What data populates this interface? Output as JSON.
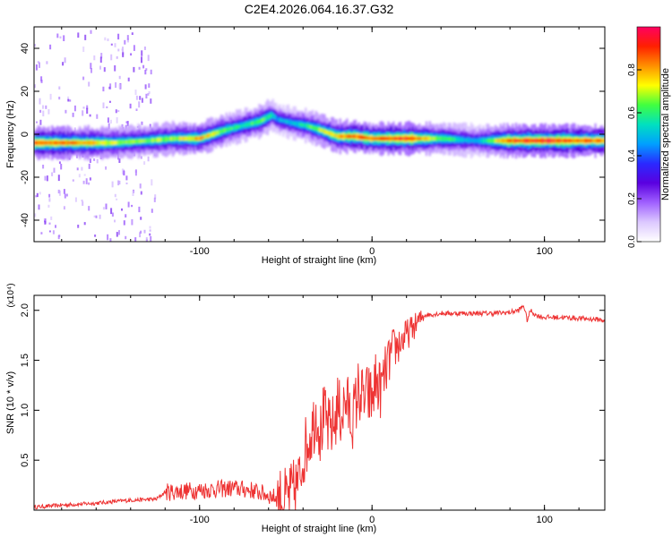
{
  "title": "C2E4.2026.064.16.37.G32",
  "colors": {
    "line": "#ee3333",
    "axis": "#000000",
    "colormap": [
      "#ffffff",
      "#dcc8ff",
      "#a060ff",
      "#5a00e0",
      "#2a2aff",
      "#00a0ff",
      "#00e0c0",
      "#40ff40",
      "#ffff00",
      "#ff9000",
      "#ff2000",
      "#ff0060"
    ]
  },
  "chart_data": [
    {
      "type": "heatmap",
      "title": "C2E4.2026.064.16.37.G32",
      "xlabel": "Height of straight line (km)",
      "ylabel": "Frequency (Hz)",
      "xlim": [
        -196,
        135
      ],
      "ylim": [
        -50,
        50
      ],
      "x_ticks": [
        "-100",
        "0",
        "100"
      ],
      "y_ticks": [
        "-40",
        "-20",
        "0",
        "20",
        "40"
      ],
      "colorbar": {
        "label": "Normalized spectral amplitude",
        "range": [
          0,
          1
        ],
        "ticks": [
          "0.0",
          "0.2",
          "0.4",
          "0.6",
          "0.8"
        ]
      },
      "ridge": {
        "x": [
          -196,
          -170,
          -150,
          -130,
          -115,
          -100,
          -85,
          -75,
          -65,
          -58,
          -55,
          -45,
          -38,
          -30,
          -20,
          -10,
          0,
          10,
          20,
          40,
          60,
          80,
          100,
          120,
          135
        ],
        "y": [
          -4,
          -4,
          -4,
          -3,
          -2,
          -2,
          2,
          4,
          6,
          9,
          7,
          5,
          4,
          2,
          -1,
          -1,
          -2,
          -2,
          -2,
          -2,
          -3,
          -3,
          -3,
          -3,
          -3
        ],
        "amplitude": [
          0.95,
          0.9,
          0.75,
          0.7,
          0.75,
          0.85,
          0.7,
          0.6,
          0.7,
          0.6,
          0.5,
          0.55,
          0.65,
          0.75,
          0.85,
          0.95,
          0.9,
          0.95,
          1.0,
          0.7,
          0.5,
          0.95,
          1.0,
          0.95,
          0.9
        ]
      }
    },
    {
      "type": "line",
      "xlabel": "Height of straight line (km)",
      "ylabel": "SNR (10 * v/v)",
      "yscale_label": "(x10⁴)",
      "xlim": [
        -196,
        135
      ],
      "ylim": [
        0,
        2.15
      ],
      "x_ticks": [
        "-100",
        "0",
        "100"
      ],
      "y_ticks": [
        "0.5",
        "1.0",
        "1.5",
        "2.0"
      ],
      "series": [
        {
          "x": [
            -196,
            -180,
            -160,
            -140,
            -125,
            -120,
            -110,
            -100,
            -90,
            -80,
            -70,
            -60,
            -55,
            -50,
            -45,
            -42,
            -40,
            -37,
            -35,
            -32,
            -30,
            -28,
            -25,
            -22,
            -20,
            -18,
            -15,
            -12,
            -10,
            -8,
            -5,
            -2,
            0,
            2,
            5,
            8,
            10,
            12,
            15,
            20,
            25,
            30,
            40,
            50,
            60,
            70,
            80,
            85,
            88,
            90,
            92,
            95,
            100,
            110,
            120,
            130,
            135
          ],
          "y": [
            0.03,
            0.05,
            0.07,
            0.1,
            0.11,
            0.18,
            0.19,
            0.2,
            0.21,
            0.22,
            0.2,
            0.15,
            0.12,
            0.1,
            0.2,
            0.3,
            0.55,
            0.7,
            0.8,
            1.0,
            0.75,
            0.95,
            0.8,
            0.85,
            1.05,
            0.95,
            1.1,
            0.9,
            1.0,
            1.2,
            1.1,
            1.15,
            1.1,
            1.3,
            1.2,
            1.4,
            1.5,
            1.6,
            1.65,
            1.75,
            1.85,
            1.95,
            1.97,
            1.97,
            1.97,
            1.97,
            1.98,
            2.0,
            2.05,
            1.9,
            2.0,
            1.95,
            1.93,
            1.93,
            1.92,
            1.91,
            1.9
          ]
        }
      ]
    }
  ]
}
